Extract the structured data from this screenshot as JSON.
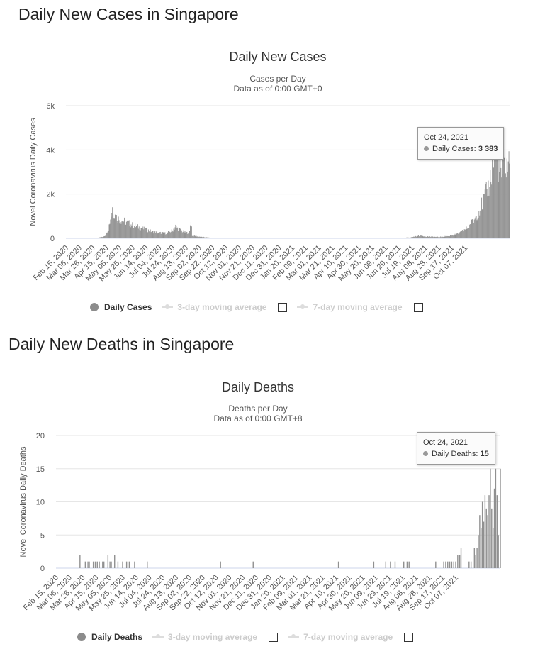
{
  "sections": [
    {
      "heading": "Daily New Cases in Singapore",
      "title": "Daily New Cases",
      "subtitle": "Cases per Day",
      "subtitle2": "Data as of 0:00 GMT+0",
      "legend": {
        "main": "Daily Cases",
        "ma3": "3-day moving average",
        "ma7": "7-day moving average"
      },
      "tooltip": {
        "date": "Oct 24, 2021",
        "label": "Daily Cases:",
        "value": "3 383"
      },
      "colors": {
        "bar": "#909090",
        "grid": "#e6e6e6"
      }
    },
    {
      "heading": "Daily New Deaths in Singapore",
      "title": "Daily Deaths",
      "subtitle": "Deaths per Day",
      "subtitle2": "Data as of 0:00 GMT+8",
      "legend": {
        "main": "Daily Deaths",
        "ma3": "3-day moving average",
        "ma7": "7-day moving average"
      },
      "tooltip": {
        "date": "Oct 24, 2021",
        "label": "Daily Deaths:",
        "value": "15"
      },
      "colors": {
        "bar": "#909090",
        "grid": "#e6e6e6"
      }
    }
  ],
  "chart_data": [
    {
      "type": "bar",
      "title": "Daily New Cases",
      "subtitle": "Cases per Day / Data as of 0:00 GMT+0",
      "ylabel": "Novel Coronavirus Daily Cases",
      "ylim": [
        0,
        6000
      ],
      "yticks": [
        0,
        2000,
        4000,
        6000
      ],
      "ytick_labels": [
        "0",
        "2k",
        "4k",
        "6k"
      ],
      "x_range": [
        "Feb 15, 2020",
        "Oct 24, 2021"
      ],
      "categories": [
        "Feb 15, 2020",
        "Mar 06, 2020",
        "Mar 26, 2020",
        "Apr 15, 2020",
        "May 05, 2020",
        "May 25, 2020",
        "Jun 14, 2020",
        "Jul 04, 2020",
        "Jul 24, 2020",
        "Aug 13, 2020",
        "Sep 02, 2020",
        "Sep 22, 2020",
        "Oct 12, 2020",
        "Nov 01, 2020",
        "Nov 21, 2020",
        "Dec 11, 2020",
        "Dec 31, 2020",
        "Jan 20, 2021",
        "Feb 09, 2021",
        "Mar 01, 2021",
        "Mar 21, 2021",
        "Apr 10, 2021",
        "Apr 30, 2021",
        "May 20, 2021",
        "Jun 09, 2021",
        "Jun 29, 2021",
        "Jul 19, 2021",
        "Aug 08, 2021",
        "Aug 28, 2021",
        "Sep 17, 2021",
        "Oct 07, 2021"
      ],
      "profile": [
        [
          0,
          0
        ],
        [
          30,
          5
        ],
        [
          45,
          20
        ],
        [
          55,
          60
        ],
        [
          60,
          150
        ],
        [
          64,
          450
        ],
        [
          67,
          900
        ],
        [
          70,
          1400
        ],
        [
          73,
          1050
        ],
        [
          80,
          850
        ],
        [
          90,
          750
        ],
        [
          100,
          600
        ],
        [
          110,
          500
        ],
        [
          120,
          400
        ],
        [
          130,
          300
        ],
        [
          140,
          250
        ],
        [
          150,
          230
        ],
        [
          155,
          280
        ],
        [
          160,
          350
        ],
        [
          165,
          550
        ],
        [
          168,
          450
        ],
        [
          175,
          320
        ],
        [
          182,
          250
        ],
        [
          186,
          300
        ],
        [
          188,
          900
        ],
        [
          190,
          120
        ],
        [
          200,
          80
        ],
        [
          210,
          45
        ],
        [
          220,
          20
        ],
        [
          240,
          10
        ],
        [
          260,
          5
        ],
        [
          300,
          3
        ],
        [
          400,
          2
        ],
        [
          500,
          3
        ],
        [
          520,
          50
        ],
        [
          530,
          120
        ],
        [
          545,
          80
        ],
        [
          560,
          60
        ],
        [
          575,
          100
        ],
        [
          590,
          200
        ],
        [
          605,
          500
        ],
        [
          615,
          900
        ],
        [
          625,
          1500
        ],
        [
          635,
          2300
        ],
        [
          640,
          3000
        ],
        [
          646,
          3700
        ],
        [
          650,
          3300
        ],
        [
          655,
          2800
        ],
        [
          660,
          3300
        ],
        [
          667,
          3383
        ]
      ],
      "series": [
        {
          "name": "Daily Cases",
          "color": "#909090"
        }
      ],
      "last_point": {
        "date": "Oct 24, 2021",
        "value": 3383
      }
    },
    {
      "type": "bar",
      "title": "Daily Deaths",
      "subtitle": "Deaths per Day / Data as of 0:00 GMT+8",
      "ylabel": "Novel Coronavirus Daily Deaths",
      "ylim": [
        0,
        20
      ],
      "yticks": [
        0,
        5,
        10,
        15,
        20
      ],
      "ytick_labels": [
        "0",
        "5",
        "10",
        "15",
        "20"
      ],
      "x_range": [
        "Feb 15, 2020",
        "Oct 24, 2021"
      ],
      "categories": [
        "Feb 15, 2020",
        "Mar 06, 2020",
        "Mar 26, 2020",
        "Apr 15, 2020",
        "May 05, 2020",
        "May 25, 2020",
        "Jun 14, 2020",
        "Jul 04, 2020",
        "Jul 24, 2020",
        "Aug 13, 2020",
        "Sep 02, 2020",
        "Sep 22, 2020",
        "Oct 12, 2020",
        "Nov 01, 2020",
        "Nov 21, 2020",
        "Dec 11, 2020",
        "Dec 31, 2020",
        "Jan 20, 2021",
        "Feb 09, 2021",
        "Mar 01, 2021",
        "Mar 21, 2021",
        "Apr 10, 2021",
        "Apr 30, 2021",
        "May 20, 2021",
        "Jun 09, 2021",
        "Jun 29, 2021",
        "Jul 19, 2021",
        "Aug 08, 2021",
        "Aug 28, 2021",
        "Sep 17, 2021",
        "Oct 07, 2021"
      ],
      "events": [
        [
          36,
          2
        ],
        [
          44,
          1
        ],
        [
          48,
          1
        ],
        [
          50,
          1
        ],
        [
          56,
          1
        ],
        [
          59,
          1
        ],
        [
          62,
          1
        ],
        [
          65,
          1
        ],
        [
          70,
          1
        ],
        [
          72,
          1
        ],
        [
          78,
          2
        ],
        [
          81,
          1
        ],
        [
          83,
          1
        ],
        [
          88,
          2
        ],
        [
          93,
          1
        ],
        [
          100,
          1
        ],
        [
          106,
          1
        ],
        [
          110,
          1
        ],
        [
          118,
          1
        ],
        [
          137,
          1
        ],
        [
          247,
          1
        ],
        [
          296,
          1
        ],
        [
          424,
          1
        ],
        [
          477,
          1
        ],
        [
          495,
          1
        ],
        [
          502,
          1
        ],
        [
          509,
          1
        ],
        [
          522,
          1
        ],
        [
          527,
          1
        ],
        [
          530,
          1
        ],
        [
          570,
          1
        ],
        [
          582,
          1
        ],
        [
          585,
          1
        ],
        [
          588,
          1
        ],
        [
          591,
          1
        ],
        [
          594,
          1
        ],
        [
          597,
          1
        ],
        [
          600,
          1
        ],
        [
          603,
          2
        ],
        [
          606,
          2
        ],
        [
          608,
          3
        ],
        [
          620,
          1
        ],
        [
          623,
          1
        ],
        [
          628,
          3
        ],
        [
          630,
          2
        ],
        [
          632,
          3
        ],
        [
          634,
          5
        ],
        [
          636,
          8
        ],
        [
          638,
          6
        ],
        [
          640,
          10
        ],
        [
          642,
          7
        ],
        [
          644,
          11
        ],
        [
          646,
          9
        ],
        [
          648,
          8
        ],
        [
          650,
          11
        ],
        [
          652,
          15
        ],
        [
          654,
          9
        ],
        [
          656,
          6
        ],
        [
          658,
          12
        ],
        [
          660,
          15
        ],
        [
          662,
          11
        ],
        [
          664,
          5
        ],
        [
          667,
          15
        ]
      ],
      "series": [
        {
          "name": "Daily Deaths",
          "color": "#909090"
        }
      ],
      "last_point": {
        "date": "Oct 24, 2021",
        "value": 15
      }
    }
  ]
}
